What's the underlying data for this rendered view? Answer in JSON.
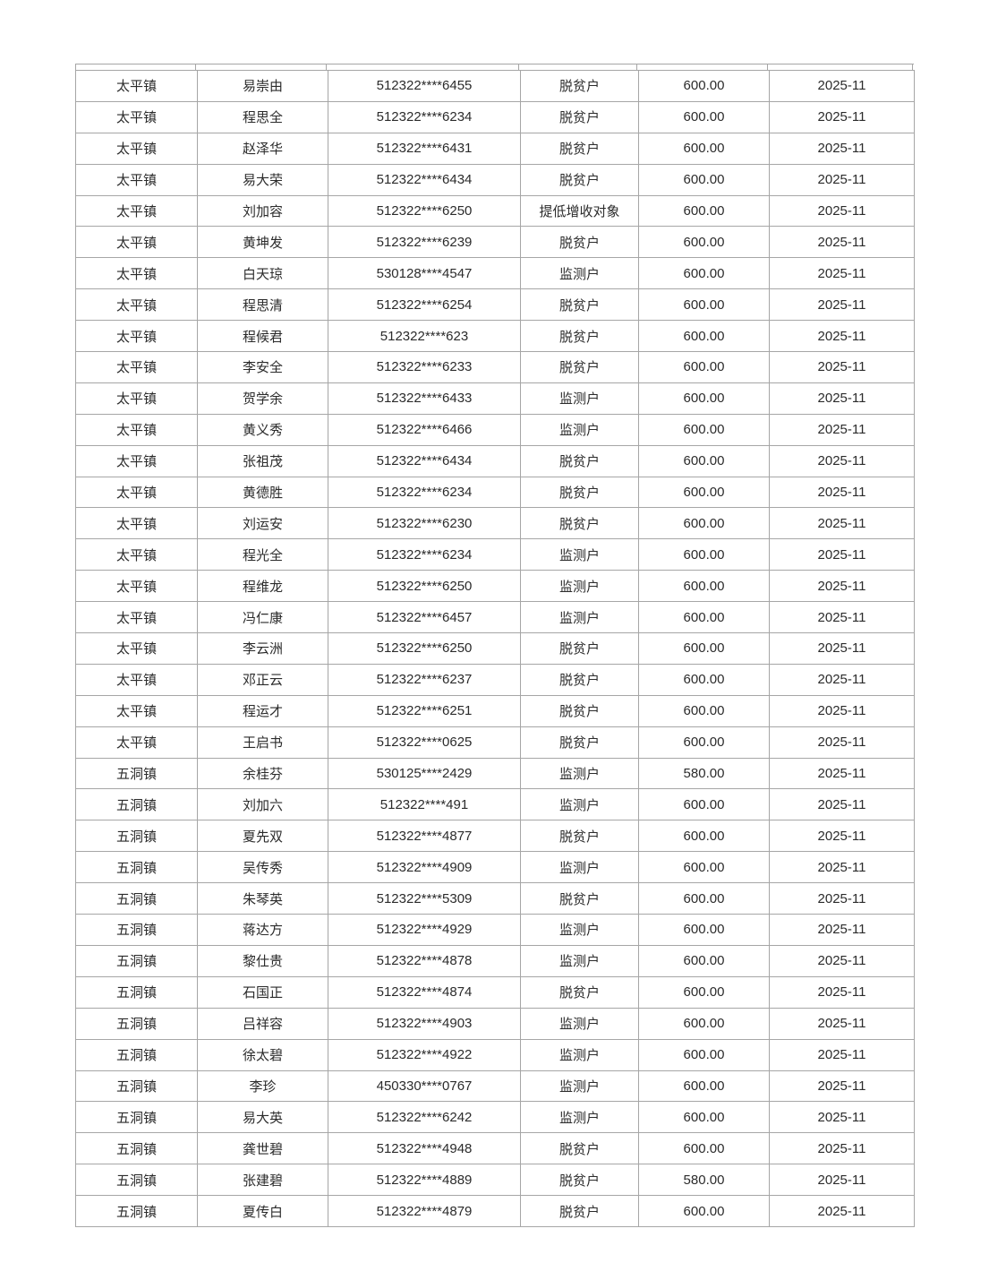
{
  "colors": {
    "border": "#a6a6a6",
    "text": "#2b2b2b",
    "background": "#ffffff"
  },
  "table": {
    "rows": [
      [
        "太平镇",
        "易崇由",
        "512322****6455",
        "脱贫户",
        "600.00",
        "2025-11"
      ],
      [
        "太平镇",
        "程思全",
        "512322****6234",
        "脱贫户",
        "600.00",
        "2025-11"
      ],
      [
        "太平镇",
        "赵泽华",
        "512322****6431",
        "脱贫户",
        "600.00",
        "2025-11"
      ],
      [
        "太平镇",
        "易大荣",
        "512322****6434",
        "脱贫户",
        "600.00",
        "2025-11"
      ],
      [
        "太平镇",
        "刘加容",
        "512322****6250",
        "提低增收对象",
        "600.00",
        "2025-11"
      ],
      [
        "太平镇",
        "黄坤发",
        "512322****6239",
        "脱贫户",
        "600.00",
        "2025-11"
      ],
      [
        "太平镇",
        "白天琼",
        "530128****4547",
        "监测户",
        "600.00",
        "2025-11"
      ],
      [
        "太平镇",
        "程思清",
        "512322****6254",
        "脱贫户",
        "600.00",
        "2025-11"
      ],
      [
        "太平镇",
        "程候君",
        "512322****623",
        "脱贫户",
        "600.00",
        "2025-11"
      ],
      [
        "太平镇",
        "李安全",
        "512322****6233",
        "脱贫户",
        "600.00",
        "2025-11"
      ],
      [
        "太平镇",
        "贺学余",
        "512322****6433",
        "监测户",
        "600.00",
        "2025-11"
      ],
      [
        "太平镇",
        "黄义秀",
        "512322****6466",
        "监测户",
        "600.00",
        "2025-11"
      ],
      [
        "太平镇",
        "张祖茂",
        "512322****6434",
        "脱贫户",
        "600.00",
        "2025-11"
      ],
      [
        "太平镇",
        "黄德胜",
        "512322****6234",
        "脱贫户",
        "600.00",
        "2025-11"
      ],
      [
        "太平镇",
        "刘运安",
        "512322****6230",
        "脱贫户",
        "600.00",
        "2025-11"
      ],
      [
        "太平镇",
        "程光全",
        "512322****6234",
        "监测户",
        "600.00",
        "2025-11"
      ],
      [
        "太平镇",
        "程维龙",
        "512322****6250",
        "监测户",
        "600.00",
        "2025-11"
      ],
      [
        "太平镇",
        "冯仁康",
        "512322****6457",
        "监测户",
        "600.00",
        "2025-11"
      ],
      [
        "太平镇",
        "李云洲",
        "512322****6250",
        "脱贫户",
        "600.00",
        "2025-11"
      ],
      [
        "太平镇",
        "邓正云",
        "512322****6237",
        "脱贫户",
        "600.00",
        "2025-11"
      ],
      [
        "太平镇",
        "程运才",
        "512322****6251",
        "脱贫户",
        "600.00",
        "2025-11"
      ],
      [
        "太平镇",
        "王启书",
        "512322****0625",
        "脱贫户",
        "600.00",
        "2025-11"
      ],
      [
        "五洞镇",
        "余桂芬",
        "530125****2429",
        "监测户",
        "580.00",
        "2025-11"
      ],
      [
        "五洞镇",
        "刘加六",
        "512322****491",
        "监测户",
        "600.00",
        "2025-11"
      ],
      [
        "五洞镇",
        "夏先双",
        "512322****4877",
        "脱贫户",
        "600.00",
        "2025-11"
      ],
      [
        "五洞镇",
        "吴传秀",
        "512322****4909",
        "监测户",
        "600.00",
        "2025-11"
      ],
      [
        "五洞镇",
        "朱琴英",
        "512322****5309",
        "脱贫户",
        "600.00",
        "2025-11"
      ],
      [
        "五洞镇",
        "蒋达方",
        "512322****4929",
        "监测户",
        "600.00",
        "2025-11"
      ],
      [
        "五洞镇",
        "黎仕贵",
        "512322****4878",
        "监测户",
        "600.00",
        "2025-11"
      ],
      [
        "五洞镇",
        "石国正",
        "512322****4874",
        "脱贫户",
        "600.00",
        "2025-11"
      ],
      [
        "五洞镇",
        "吕祥容",
        "512322****4903",
        "监测户",
        "600.00",
        "2025-11"
      ],
      [
        "五洞镇",
        "徐太碧",
        "512322****4922",
        "监测户",
        "600.00",
        "2025-11"
      ],
      [
        "五洞镇",
        "李珍",
        "450330****0767",
        "监测户",
        "600.00",
        "2025-11"
      ],
      [
        "五洞镇",
        "易大英",
        "512322****6242",
        "监测户",
        "600.00",
        "2025-11"
      ],
      [
        "五洞镇",
        "龚世碧",
        "512322****4948",
        "脱贫户",
        "600.00",
        "2025-11"
      ],
      [
        "五洞镇",
        "张建碧",
        "512322****4889",
        "脱贫户",
        "580.00",
        "2025-11"
      ],
      [
        "五洞镇",
        "夏传白",
        "512322****4879",
        "脱贫户",
        "600.00",
        "2025-11"
      ]
    ]
  }
}
